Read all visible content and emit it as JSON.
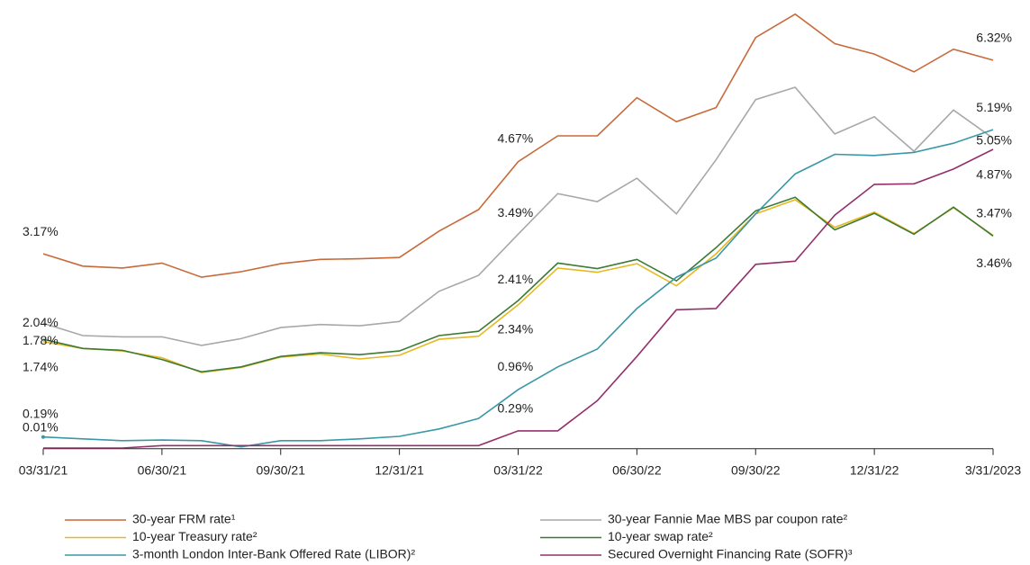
{
  "chart_data": {
    "type": "line",
    "categories": [
      "03/31/21",
      null,
      null,
      "06/30/21",
      null,
      null,
      "09/30/21",
      null,
      null,
      "12/31/21",
      null,
      null,
      "03/31/22",
      null,
      null,
      "06/30/22",
      null,
      null,
      "09/30/22",
      null,
      null,
      "12/31/22",
      null,
      null,
      "3/31/2023"
    ],
    "ylim": [
      0,
      7.3
    ],
    "grid": false,
    "legend": "bottom",
    "series": [
      {
        "name": "30-year FRM rate¹",
        "color": "#c8693a",
        "label_color": "#c8693a",
        "values": [
          3.17,
          2.97,
          2.94,
          3.02,
          2.79,
          2.88,
          3.01,
          3.08,
          3.09,
          3.11,
          3.54,
          3.89,
          4.67,
          5.09,
          5.09,
          5.71,
          5.32,
          5.55,
          6.69,
          7.07,
          6.59,
          6.42,
          6.13,
          6.5,
          6.32
        ],
        "value_labels": [
          "3.17%",
          null,
          null,
          null,
          null,
          null,
          null,
          null,
          null,
          null,
          null,
          null,
          "4.67%",
          null,
          null,
          null,
          null,
          null,
          null,
          null,
          null,
          null,
          null,
          null,
          "6.32%"
        ]
      },
      {
        "name": "30-year Fannie Mae MBS par coupon rate²",
        "color": "#a8a8a8",
        "label_color": "#1f3c6e",
        "values": [
          2.04,
          1.84,
          1.82,
          1.82,
          1.68,
          1.79,
          1.97,
          2.02,
          2.0,
          2.07,
          2.56,
          2.82,
          3.49,
          4.15,
          4.02,
          4.4,
          3.82,
          4.7,
          5.68,
          5.88,
          5.12,
          5.4,
          4.84,
          5.51,
          5.05
        ],
        "value_labels": [
          "2.04%",
          null,
          null,
          null,
          null,
          null,
          null,
          null,
          null,
          null,
          null,
          null,
          "3.49%",
          null,
          null,
          null,
          null,
          null,
          null,
          null,
          null,
          null,
          null,
          null,
          "5.05%"
        ]
      },
      {
        "name": "10-year Treasury rate²",
        "color": "#e8b820",
        "label_color": "#e0aa10",
        "values": [
          1.74,
          1.63,
          1.59,
          1.48,
          1.24,
          1.32,
          1.49,
          1.54,
          1.46,
          1.52,
          1.78,
          1.83,
          2.34,
          2.94,
          2.87,
          3.01,
          2.65,
          3.17,
          3.82,
          4.05,
          3.6,
          3.85,
          3.5,
          3.92,
          3.47
        ],
        "value_labels": [
          "1.74%",
          null,
          null,
          null,
          null,
          null,
          null,
          null,
          null,
          null,
          null,
          null,
          "2.34%",
          null,
          null,
          null,
          null,
          null,
          null,
          null,
          null,
          null,
          null,
          null,
          "3.47%"
        ]
      },
      {
        "name": "10-year swap rate²",
        "color": "#3d7a35",
        "label_color": "#3d7a35",
        "values": [
          1.78,
          1.63,
          1.6,
          1.45,
          1.25,
          1.33,
          1.5,
          1.56,
          1.53,
          1.59,
          1.84,
          1.91,
          2.41,
          3.02,
          2.93,
          3.08,
          2.73,
          3.27,
          3.87,
          4.09,
          3.56,
          3.83,
          3.49,
          3.93,
          3.46
        ],
        "value_labels": [
          "1.78%",
          null,
          null,
          null,
          null,
          null,
          null,
          null,
          null,
          null,
          null,
          null,
          "2.41%",
          null,
          null,
          null,
          null,
          null,
          null,
          null,
          null,
          null,
          null,
          null,
          "3.46%"
        ]
      },
      {
        "name": "3-month London Inter-Bank Offered Rate (LIBOR)²",
        "color": "#3a97a6",
        "label_color": "#2a6f9a",
        "values": [
          0.19,
          0.16,
          0.13,
          0.14,
          0.13,
          0.03,
          0.13,
          0.13,
          0.16,
          0.2,
          0.32,
          0.49,
          0.96,
          1.33,
          1.62,
          2.28,
          2.79,
          3.1,
          3.82,
          4.47,
          4.79,
          4.77,
          4.82,
          4.97,
          5.19
        ],
        "value_labels": [
          "0.19%",
          null,
          null,
          null,
          null,
          null,
          null,
          null,
          null,
          null,
          null,
          null,
          "0.96%",
          null,
          null,
          null,
          null,
          null,
          null,
          null,
          null,
          null,
          null,
          null,
          "5.19%"
        ]
      },
      {
        "name": "Secured Overnight Financing Rate (SOFR)³",
        "color": "#93306b",
        "label_color": "#93306b",
        "values": [
          0.01,
          0.01,
          0.01,
          0.05,
          0.05,
          0.05,
          0.05,
          0.05,
          0.05,
          0.05,
          0.05,
          0.05,
          0.29,
          0.29,
          0.78,
          1.5,
          2.26,
          2.28,
          3.0,
          3.05,
          3.8,
          4.3,
          4.31,
          4.55,
          4.87
        ],
        "value_labels": [
          "0.01%",
          null,
          null,
          null,
          null,
          null,
          null,
          null,
          null,
          null,
          null,
          null,
          "0.29%",
          null,
          null,
          null,
          null,
          null,
          null,
          null,
          null,
          null,
          null,
          null,
          "4.87%"
        ]
      }
    ]
  }
}
